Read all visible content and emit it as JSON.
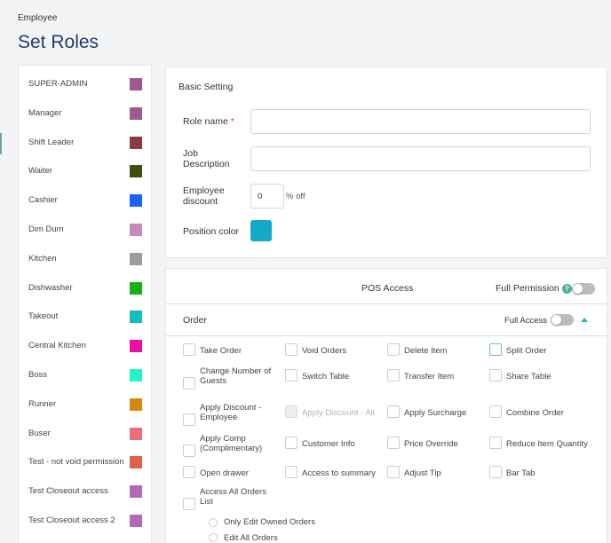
{
  "breadcrumb": "Employee",
  "page_title": "Set Roles",
  "roles": [
    {
      "name": "SUPER-ADMIN",
      "color": "#9c5a8f"
    },
    {
      "name": "Manager",
      "color": "#9c5a8f"
    },
    {
      "name": "Shift Leader",
      "color": "#8b3a3e"
    },
    {
      "name": "Waiter",
      "color": "#3e5010"
    },
    {
      "name": "Cashier",
      "color": "#1e63f0"
    },
    {
      "name": "Dim Dum",
      "color": "#c88ab8"
    },
    {
      "name": "Kitchen",
      "color": "#9e9a9e"
    },
    {
      "name": "Dishwasher",
      "color": "#16b016"
    },
    {
      "name": "Takeout",
      "color": "#12bcc0"
    },
    {
      "name": "Central Kitchen",
      "color": "#ec0ea7"
    },
    {
      "name": "Boss",
      "color": "#22f5c8"
    },
    {
      "name": "Runner",
      "color": "#d4880f"
    },
    {
      "name": "Buser",
      "color": "#ec6e78"
    },
    {
      "name": "Test - not void permission",
      "color": "#e0604e"
    },
    {
      "name": "Test Closeout access",
      "color": "#b468b6"
    },
    {
      "name": "Test Closeout access 2",
      "color": "#b468b6"
    }
  ],
  "basic_setting": {
    "title": "Basic Setting",
    "role_name_label": "Role name",
    "required_mark": "*",
    "role_name_value": "",
    "job_description_label_1": "Job",
    "job_description_label_2": "Description",
    "job_description_value": "",
    "employee_discount_label_1": "Employee",
    "employee_discount_label_2": "discount",
    "employee_discount_value": "0",
    "discount_suffix": "% off",
    "position_color_label": "Position color",
    "position_color": "#14a9c9"
  },
  "pos_access": {
    "title": "POS Access",
    "full_permission_label": "Full Permission",
    "help_icon_text": "?",
    "full_permission_on": false
  },
  "order_section": {
    "title": "Order",
    "full_access_label": "Full Access",
    "full_access_on": false,
    "permissions": [
      {
        "l1": "Take Order",
        "l2": ""
      },
      {
        "l1": "Void Orders",
        "l2": ""
      },
      {
        "l1": "Delete Item",
        "l2": ""
      },
      {
        "l1": "Split Order",
        "l2": ""
      },
      {
        "l1": "Change Number of",
        "l2": "Guests"
      },
      {
        "l1": "Switch Table",
        "l2": ""
      },
      {
        "l1": "Transfer Item",
        "l2": ""
      },
      {
        "l1": "Share Table",
        "l2": ""
      },
      {
        "l1": "Apply Discount -",
        "l2": "Employee"
      },
      {
        "l1": "Apply Discount - All",
        "l2": ""
      },
      {
        "l1": "Apply Surcharge",
        "l2": ""
      },
      {
        "l1": "Combine Order",
        "l2": ""
      },
      {
        "l1": "Apply Comp",
        "l2": "(Complimentary)"
      },
      {
        "l1": "Customer Info",
        "l2": ""
      },
      {
        "l1": "Price Override",
        "l2": ""
      },
      {
        "l1": "Reduce Item Quantity",
        "l2": ""
      },
      {
        "l1": "Open drawer",
        "l2": ""
      },
      {
        "l1": "Access to summary",
        "l2": ""
      },
      {
        "l1": "Adjust Tip",
        "l2": ""
      },
      {
        "l1": "Bar Tab",
        "l2": ""
      },
      {
        "l1": "Access All Orders",
        "l2": "List"
      }
    ],
    "sub_options": [
      "Only Edit Owned Orders",
      "Edit All Orders"
    ]
  }
}
